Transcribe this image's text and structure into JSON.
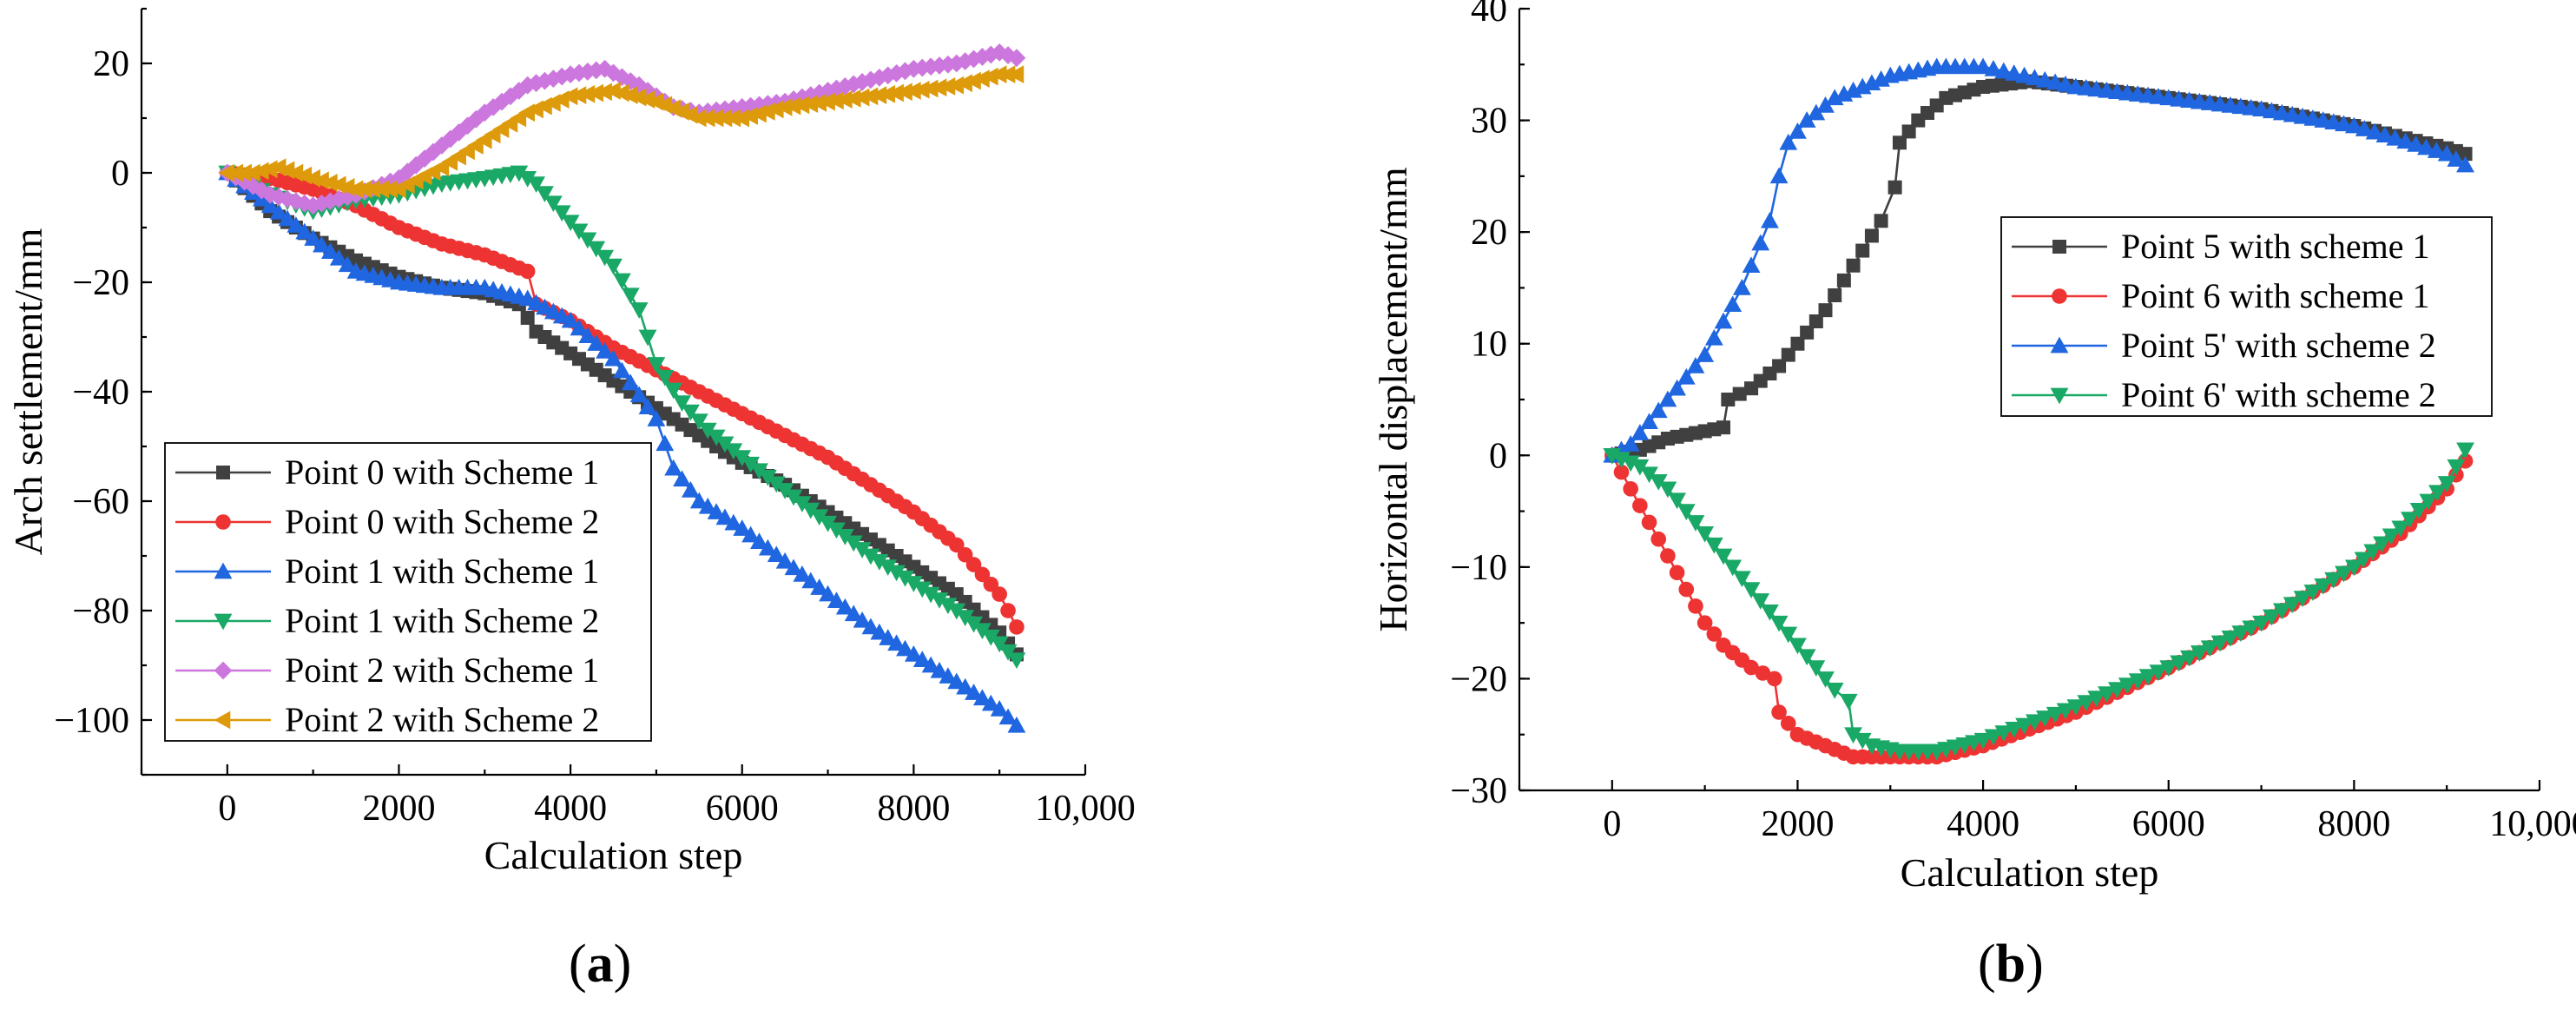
{
  "chart_data": [
    {
      "type": "line",
      "panel_label": "a",
      "xlabel": "Calculation step",
      "ylabel": "Arch settlement/mm",
      "xlim": [
        -1000,
        10000
      ],
      "ylim": [
        -110,
        30
      ],
      "xticks": [
        0,
        2000,
        4000,
        6000,
        8000,
        10000
      ],
      "xtick_labels": [
        "0",
        "2000",
        "4000",
        "6000",
        "8000",
        "10,000"
      ],
      "yticks": [
        20,
        0,
        -20,
        -40,
        -60,
        -80,
        -100
      ],
      "ytick_labels": [
        "20",
        "0",
        "−20",
        "−40",
        "−60",
        "−80",
        "−100"
      ],
      "legend_position": "bottom-left",
      "series": [
        {
          "name": "Point 0 with Scheme 1",
          "color": "#404040",
          "marker": "square",
          "x": [
            0,
            500,
            1000,
            1500,
            2000,
            2500,
            3000,
            3400,
            3600,
            4000,
            4500,
            5000,
            5500,
            6000,
            6500,
            7000,
            7500,
            8000,
            8500,
            9000,
            9200
          ],
          "y": [
            0,
            -7,
            -12,
            -16,
            -19,
            -21,
            -22,
            -24,
            -29,
            -33,
            -38,
            -43,
            -48,
            -53,
            -57,
            -62,
            -67,
            -72,
            -77,
            -84,
            -88
          ]
        },
        {
          "name": "Point 0 with Scheme 2",
          "color": "#ee3333",
          "marker": "circle",
          "x": [
            0,
            500,
            1000,
            1500,
            2000,
            2500,
            3000,
            3500,
            3600,
            4000,
            4500,
            5000,
            5500,
            6000,
            6500,
            7000,
            7500,
            8000,
            8500,
            9000,
            9200
          ],
          "y": [
            0,
            -1,
            -3,
            -6,
            -10,
            -13,
            -15,
            -18,
            -24,
            -27,
            -32,
            -36,
            -40,
            -44,
            -48,
            -52,
            -57,
            -62,
            -68,
            -77,
            -83
          ]
        },
        {
          "name": "Point 1 with Scheme 1",
          "color": "#1f66e0",
          "marker": "triangle-up",
          "x": [
            0,
            500,
            1000,
            1500,
            2000,
            2500,
            3000,
            3500,
            4000,
            4500,
            5000,
            5200,
            5500,
            6000,
            6500,
            7000,
            7500,
            8000,
            8500,
            9000,
            9200
          ],
          "y": [
            0,
            -6,
            -12,
            -18,
            -20,
            -21,
            -21,
            -23,
            -27,
            -34,
            -45,
            -54,
            -60,
            -65,
            -71,
            -77,
            -83,
            -88,
            -93,
            -98,
            -101
          ]
        },
        {
          "name": "Point 1 with Scheme 2",
          "color": "#1aa866",
          "marker": "triangle-down",
          "x": [
            0,
            500,
            1000,
            1500,
            2000,
            2500,
            3000,
            3400,
            3600,
            4000,
            4500,
            4800,
            5000,
            5300,
            5600,
            6000,
            6500,
            7000,
            7500,
            8000,
            8500,
            9000,
            9200
          ],
          "y": [
            0,
            -4,
            -7,
            -5,
            -4,
            -2,
            -1,
            0,
            -2,
            -9,
            -17,
            -25,
            -35,
            -42,
            -47,
            -52,
            -58,
            -64,
            -70,
            -75,
            -80,
            -86,
            -89
          ]
        },
        {
          "name": "Point 2 with Scheme 1",
          "color": "#cc77dd",
          "marker": "diamond",
          "x": [
            0,
            500,
            1000,
            1500,
            2000,
            2500,
            3000,
            3500,
            4000,
            4400,
            4800,
            5200,
            5500,
            6000,
            6500,
            7000,
            7500,
            8000,
            8500,
            9000,
            9200
          ],
          "y": [
            0,
            -4,
            -6,
            -4,
            -1,
            5,
            11,
            16,
            18,
            19,
            16,
            12,
            11,
            12,
            13,
            15,
            17,
            19,
            20,
            22,
            21
          ]
        },
        {
          "name": "Point 2 with Scheme 2",
          "color": "#dd9a0a",
          "marker": "triangle-left",
          "x": [
            0,
            300,
            600,
            1000,
            1500,
            2000,
            2500,
            3000,
            3500,
            4000,
            4500,
            5000,
            5500,
            6000,
            6500,
            7000,
            7500,
            8000,
            8500,
            9000,
            9200
          ],
          "y": [
            0,
            0,
            1,
            -1,
            -3,
            -3,
            1,
            6,
            11,
            14,
            15,
            13,
            10,
            10,
            12,
            13,
            14,
            15,
            16,
            18,
            18
          ]
        }
      ]
    },
    {
      "type": "line",
      "panel_label": "b",
      "xlabel": "Calculation step",
      "ylabel": "Horizontal displacement/mm",
      "xlim": [
        -1000,
        10000
      ],
      "ylim": [
        -30,
        40
      ],
      "xticks": [
        0,
        2000,
        4000,
        6000,
        8000,
        10000
      ],
      "xtick_labels": [
        "0",
        "2000",
        "4000",
        "6000",
        "8000",
        "10,000"
      ],
      "yticks": [
        40,
        30,
        20,
        10,
        0,
        -10,
        -20,
        -30
      ],
      "ytick_labels": [
        "40",
        "30",
        "20",
        "10",
        "0",
        "−10",
        "−20",
        "−30"
      ],
      "legend_position": "top-right",
      "series": [
        {
          "name": "Point 5 with scheme 1",
          "color": "#404040",
          "marker": "square",
          "x": [
            0,
            300,
            600,
            900,
            1200,
            1250,
            1500,
            1800,
            2000,
            2300,
            2600,
            2900,
            3050,
            3100,
            3300,
            3600,
            4000,
            4500,
            5000,
            6000,
            7000,
            8000,
            9000,
            9200
          ],
          "y": [
            0,
            0.5,
            1.5,
            2,
            2.5,
            5,
            6,
            8,
            10,
            13,
            17,
            21,
            24,
            28,
            30,
            32,
            33,
            33.5,
            33,
            32,
            31,
            29.5,
            27.5,
            27
          ]
        },
        {
          "name": "Point 6 with scheme 1",
          "color": "#ee3333",
          "marker": "circle",
          "x": [
            0,
            200,
            400,
            600,
            800,
            1000,
            1200,
            1500,
            1750,
            1800,
            2000,
            2300,
            2600,
            3000,
            3500,
            4000,
            4500,
            5000,
            6000,
            7000,
            8000,
            8500,
            9000,
            9200
          ],
          "y": [
            0,
            -3,
            -6,
            -9,
            -12,
            -15,
            -17,
            -19,
            -20,
            -23,
            -25,
            -26,
            -27,
            -27,
            -27,
            -26,
            -24.5,
            -23,
            -19,
            -15,
            -10,
            -7,
            -3,
            -0.5
          ]
        },
        {
          "name": "Point 5' with scheme 2",
          "color": "#1f66e0",
          "marker": "triangle-up",
          "x": [
            0,
            200,
            400,
            600,
            800,
            1000,
            1200,
            1400,
            1600,
            1700,
            1800,
            1900,
            2100,
            2400,
            2700,
            3000,
            3500,
            4000,
            5000,
            6000,
            7000,
            8000,
            9000,
            9200
          ],
          "y": [
            0,
            1,
            3,
            5,
            7,
            9,
            12,
            15,
            19,
            21,
            25,
            28,
            30,
            32,
            33,
            34,
            34.8,
            34.8,
            33,
            32,
            31,
            29.5,
            27,
            26
          ]
        },
        {
          "name": "Point 6' with scheme 2",
          "color": "#1aa866",
          "marker": "triangle-down",
          "x": [
            0,
            300,
            600,
            900,
            1200,
            1500,
            1800,
            2100,
            2400,
            2550,
            2600,
            2800,
            3100,
            3500,
            4000,
            5000,
            6000,
            7000,
            8000,
            8500,
            9000,
            9200
          ],
          "y": [
            0,
            -1,
            -3,
            -6,
            -9,
            -12,
            -15,
            -18,
            -21,
            -22,
            -25,
            -26,
            -26.5,
            -26.5,
            -25.5,
            -22.5,
            -19,
            -15,
            -10,
            -6.5,
            -2.5,
            0.5
          ]
        }
      ]
    }
  ]
}
